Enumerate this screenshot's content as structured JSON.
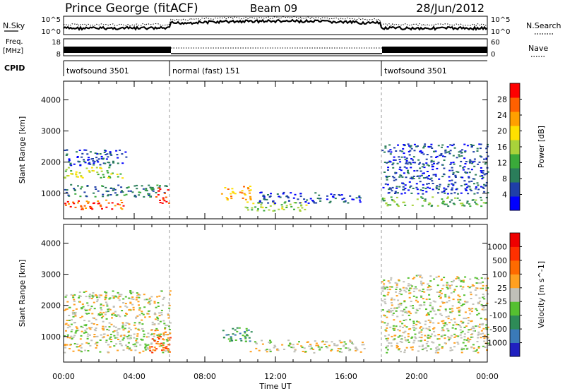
{
  "header": {
    "station": "Prince George (fitACF)",
    "beam": "Beam 09",
    "date": "28/Jun/2012"
  },
  "strip_labels": {
    "nsky": "N.Sky",
    "nsky_tick_top": "10^5",
    "nsky_tick_bottom": "10^0",
    "nsearch": "N.Search",
    "nsearch_tick_top": "10^5",
    "nsearch_tick_bottom": "10^0",
    "freq_label_1": "Freq.",
    "freq_label_2": "[MHz]",
    "freq_tick_top": "18",
    "freq_tick_bottom": "8",
    "nave": "Nave",
    "nave_tick_top": "60",
    "nave_tick_bottom": "0",
    "cpid": "CPID"
  },
  "cpid_segments": [
    {
      "label": "twofsound 3501",
      "start_hour": 0,
      "end_hour": 6
    },
    {
      "label": "normal (fast) 151",
      "start_hour": 6,
      "end_hour": 18
    },
    {
      "label": "twofsound 3501",
      "start_hour": 18,
      "end_hour": 24
    }
  ],
  "axes": {
    "ylabel": "Slant Range [km]",
    "xlabel": "Time UT",
    "y_ticks": [
      "1000",
      "2000",
      "3000",
      "4000"
    ],
    "x_ticks": [
      "00:00",
      "04:00",
      "08:00",
      "12:00",
      "16:00",
      "20:00",
      "00:00"
    ]
  },
  "colors": {
    "power": [
      "#0000ff",
      "#1f3fa8",
      "#2a7d5a",
      "#3aaa3a",
      "#a8d23a",
      "#ffe000",
      "#ffa000",
      "#ff6000",
      "#ff0000"
    ],
    "velocity": [
      "#2020c0",
      "#3a7ab8",
      "#2e8b57",
      "#55c030",
      "#c0c0b8",
      "#ffa020",
      "#ff6a00",
      "#ff3000",
      "#ee0000"
    ]
  },
  "chart_data": [
    {
      "type": "heatmap",
      "name": "Power",
      "colorbar_label": "Power [dB]",
      "colorbar_ticks": [
        "4",
        "8",
        "12",
        "16",
        "20",
        "24",
        "28"
      ],
      "xlim": [
        0,
        24
      ],
      "ylim": [
        180,
        4600
      ],
      "regions": [
        {
          "x0": 0.0,
          "x1": 3.6,
          "y0": 1900,
          "y1": 2450,
          "level": 1
        },
        {
          "x0": 0.0,
          "x1": 3.3,
          "y0": 1500,
          "y1": 1850,
          "level": 4
        },
        {
          "x0": 0.0,
          "x1": 5.8,
          "y0": 900,
          "y1": 1300,
          "level": 2
        },
        {
          "x0": 0.0,
          "x1": 3.6,
          "y0": 500,
          "y1": 800,
          "level": 7
        },
        {
          "x0": 5.2,
          "x1": 6.0,
          "y0": 700,
          "y1": 1200,
          "level": 8
        },
        {
          "x0": 8.9,
          "x1": 10.6,
          "y0": 800,
          "y1": 1250,
          "level": 6
        },
        {
          "x0": 10.0,
          "x1": 13.8,
          "y0": 450,
          "y1": 750,
          "level": 4
        },
        {
          "x0": 11.0,
          "x1": 16.8,
          "y0": 700,
          "y1": 1050,
          "level": 1
        },
        {
          "x0": 18.0,
          "x1": 24.0,
          "y0": 600,
          "y1": 900,
          "level": 3
        },
        {
          "x0": 18.0,
          "x1": 24.0,
          "y0": 1000,
          "y1": 2600,
          "level": 1
        }
      ]
    },
    {
      "type": "heatmap",
      "name": "Velocity",
      "colorbar_label": "Velocity [m s^-1]",
      "colorbar_ticks": [
        "1000",
        "500",
        "100",
        "25",
        "-25",
        "-100",
        "-500",
        "-1000"
      ],
      "xlim": [
        0,
        24
      ],
      "ylim": [
        180,
        4600
      ],
      "regions": [
        {
          "x0": 0.0,
          "x1": 6.0,
          "y0": 500,
          "y1": 2500,
          "level": 4
        },
        {
          "x0": 4.8,
          "x1": 6.0,
          "y0": 500,
          "y1": 1250,
          "level": 6
        },
        {
          "x0": 8.9,
          "x1": 10.6,
          "y0": 750,
          "y1": 1300,
          "level": 2
        },
        {
          "x0": 10.4,
          "x1": 17.0,
          "y0": 500,
          "y1": 900,
          "level": 4
        },
        {
          "x0": 18.0,
          "x1": 24.0,
          "y0": 500,
          "y1": 3000,
          "level": 4
        }
      ]
    }
  ]
}
